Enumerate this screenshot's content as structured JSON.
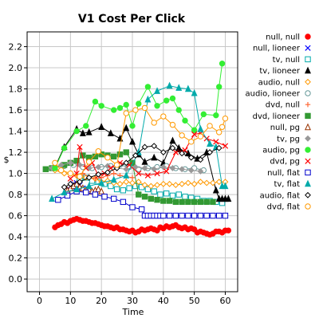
{
  "chart_data": {
    "type": "line",
    "title": "V1 Cost Per Click",
    "xlabel": "Time",
    "ylabel": "$",
    "xlim": [
      -4,
      64
    ],
    "ylim": [
      -0.12,
      2.34
    ],
    "xticks": [
      "0",
      "10",
      "20",
      "30",
      "40",
      "50",
      "60"
    ],
    "yticks": [
      "0.0",
      "0.2",
      "0.4",
      "0.6",
      "0.8",
      "1.0",
      "1.2",
      "1.4",
      "1.6",
      "1.8",
      "2.0",
      "2.2"
    ],
    "grid": true,
    "legend_position": "right",
    "series": [
      {
        "name": "null, null",
        "color": "#ff0000",
        "marker": "circle-filled",
        "x": [
          5,
          6,
          7,
          8,
          9,
          10,
          11,
          12,
          13,
          14,
          15,
          16,
          17,
          18,
          19,
          20,
          21,
          22,
          23,
          24,
          25,
          26,
          27,
          28,
          29,
          30,
          31,
          32,
          33,
          34,
          35,
          36,
          37,
          38,
          39,
          40,
          41,
          42,
          43,
          44,
          45,
          46,
          47,
          48,
          49,
          50,
          51,
          52,
          53,
          54,
          55,
          56,
          57,
          58,
          59,
          60,
          61
        ],
        "y": [
          0.49,
          0.51,
          0.52,
          0.54,
          0.53,
          0.55,
          0.56,
          0.57,
          0.56,
          0.55,
          0.55,
          0.54,
          0.53,
          0.53,
          0.52,
          0.51,
          0.5,
          0.5,
          0.49,
          0.48,
          0.49,
          0.47,
          0.47,
          0.46,
          0.45,
          0.46,
          0.44,
          0.45,
          0.47,
          0.46,
          0.47,
          0.48,
          0.47,
          0.46,
          0.49,
          0.48,
          0.5,
          0.49,
          0.5,
          0.51,
          0.49,
          0.48,
          0.49,
          0.47,
          0.48,
          0.47,
          0.44,
          0.45,
          0.44,
          0.43,
          0.42,
          0.43,
          0.45,
          0.45,
          0.44,
          0.46,
          0.46
        ]
      },
      {
        "name": "null, lioneer",
        "color": "#0000ff",
        "marker": "x",
        "x": [
          9,
          10,
          11,
          12,
          13,
          14,
          15
        ],
        "y": [
          0.85,
          0.88,
          0.9,
          0.91,
          0.89,
          0.86,
          0.83
        ]
      },
      {
        "name": "tv, null",
        "color": "#00aaaa",
        "marker": "square-open",
        "x": [
          13,
          15,
          17,
          19,
          21,
          23,
          25,
          27,
          29,
          31,
          33,
          35,
          37,
          39,
          41,
          43,
          45,
          47,
          49,
          51,
          53,
          55,
          57,
          59
        ],
        "y": [
          0.95,
          0.96,
          0.93,
          0.92,
          0.9,
          0.88,
          0.85,
          0.84,
          0.86,
          0.88,
          0.87,
          0.85,
          0.83,
          0.8,
          0.81,
          0.79,
          0.8,
          0.78,
          0.77,
          0.76,
          0.74,
          0.74,
          0.73,
          0.72
        ]
      },
      {
        "name": "tv, lioneer",
        "color": "#000000",
        "marker": "triangle-filled",
        "x": [
          5,
          8,
          12,
          14,
          16,
          20,
          23,
          26,
          28,
          30,
          32,
          34,
          37,
          40,
          43,
          45,
          48,
          51,
          54,
          57,
          58,
          59,
          60,
          61
        ],
        "y": [
          1.06,
          1.25,
          1.42,
          1.38,
          1.39,
          1.44,
          1.38,
          1.33,
          1.43,
          1.3,
          1.18,
          1.11,
          1.15,
          1.1,
          1.31,
          1.24,
          1.19,
          1.14,
          1.2,
          0.84,
          0.76,
          0.76,
          0.76,
          0.76
        ]
      },
      {
        "name": "audio, null",
        "color": "#ff9900",
        "marker": "diamond-open",
        "x": [
          5,
          8,
          12,
          15,
          18,
          20,
          22,
          24,
          26,
          28,
          30,
          32,
          34,
          36,
          38,
          40,
          42,
          44,
          46,
          48,
          50,
          52,
          54,
          56,
          58,
          60
        ],
        "y": [
          1.03,
          1.0,
          0.98,
          0.96,
          0.95,
          0.92,
          0.93,
          0.91,
          0.9,
          0.92,
          0.91,
          0.92,
          0.89,
          0.88,
          0.89,
          0.9,
          0.9,
          0.89,
          0.9,
          0.91,
          0.9,
          0.92,
          0.91,
          0.91,
          0.92,
          0.92
        ]
      },
      {
        "name": "audio, lioneer",
        "color": "#669999",
        "marker": "circle-open",
        "x": [
          5,
          8,
          11,
          14,
          17,
          20,
          23,
          26,
          29,
          32,
          35,
          38,
          41,
          44,
          47,
          50,
          53
        ],
        "y": [
          1.06,
          1.07,
          1.08,
          1.06,
          1.05,
          1.06,
          1.07,
          1.08,
          1.06,
          1.04,
          1.05,
          1.06,
          1.07,
          1.05,
          1.04,
          1.05,
          1.03
        ]
      },
      {
        "name": "dvd, null",
        "color": "#ff6633",
        "marker": "plus",
        "x": [
          12,
          14,
          16,
          18,
          20,
          22,
          24,
          26,
          28,
          30
        ],
        "y": [
          0.98,
          1.0,
          0.97,
          0.95,
          0.96,
          0.98,
          1.0,
          0.98,
          0.97,
          0.96
        ]
      },
      {
        "name": "dvd, lioneer",
        "color": "#339933",
        "marker": "square-filled",
        "x": [
          2,
          4,
          8,
          10,
          12,
          14,
          16,
          18,
          20,
          22,
          24,
          26,
          28,
          30,
          32,
          34,
          36,
          38,
          40,
          42,
          44,
          46,
          48,
          50,
          52,
          54,
          56
        ],
        "y": [
          1.04,
          1.05,
          1.08,
          1.1,
          1.12,
          1.17,
          1.15,
          1.16,
          1.18,
          1.17,
          1.16,
          1.18,
          1.2,
          1.1,
          0.8,
          0.78,
          0.76,
          0.75,
          0.74,
          0.74,
          0.73,
          0.73,
          0.73,
          0.73,
          0.73,
          0.73,
          0.73
        ]
      },
      {
        "name": "null, pg",
        "color": "#993300",
        "marker": "triangle-open",
        "x": [
          9,
          10,
          11,
          12,
          13,
          14,
          15,
          16,
          17,
          18,
          19,
          20
        ],
        "y": [
          0.84,
          0.86,
          0.88,
          0.9,
          0.87,
          0.86,
          0.84,
          0.85,
          0.83,
          0.84,
          0.85,
          0.83
        ]
      },
      {
        "name": "tv, pg",
        "color": "#999999",
        "marker": "diamond-filled",
        "x": [
          4,
          7,
          10,
          13,
          16,
          19,
          22,
          25,
          28,
          31,
          34,
          37,
          40,
          43,
          46,
          49,
          52
        ],
        "y": [
          1.05,
          1.08,
          1.1,
          1.08,
          1.05,
          1.06,
          1.07,
          1.05,
          1.04,
          1.06,
          1.05,
          1.04,
          1.06,
          1.05,
          1.04,
          1.03,
          1.02
        ]
      },
      {
        "name": "audio, pg",
        "color": "#33ee33",
        "marker": "circle-filled",
        "x": [
          5,
          8,
          12,
          15,
          18,
          20,
          24,
          26,
          28,
          30,
          32,
          35,
          38,
          41,
          43,
          45,
          47,
          50,
          53,
          57,
          58,
          59
        ],
        "y": [
          1.05,
          1.24,
          1.4,
          1.45,
          1.68,
          1.64,
          1.6,
          1.62,
          1.65,
          1.45,
          1.66,
          1.82,
          1.64,
          1.69,
          1.71,
          1.6,
          1.5,
          1.41,
          1.56,
          1.55,
          1.82,
          2.04
        ]
      },
      {
        "name": "dvd, pg",
        "color": "#ff0000",
        "marker": "x",
        "x": [
          10,
          12,
          13,
          15,
          17,
          19,
          21,
          23,
          26,
          29,
          32,
          35,
          38,
          41,
          44,
          47,
          50,
          52,
          54,
          57,
          60
        ],
        "y": [
          0.95,
          1.0,
          1.25,
          1.05,
          1.1,
          0.98,
          1.0,
          1.05,
          1.1,
          1.08,
          1.0,
          0.98,
          1.0,
          1.02,
          1.2,
          1.22,
          1.37,
          1.38,
          1.33,
          1.3,
          1.26
        ]
      },
      {
        "name": "null, flat",
        "color": "#0000cc",
        "marker": "square-open",
        "x": [
          6,
          9,
          12,
          15,
          18,
          21,
          24,
          27,
          30,
          33,
          34,
          35,
          36,
          37,
          38,
          39,
          40,
          42,
          44,
          46,
          48,
          50,
          52,
          54,
          56,
          58,
          60
        ],
        "y": [
          0.75,
          0.79,
          0.83,
          0.82,
          0.8,
          0.78,
          0.76,
          0.73,
          0.68,
          0.66,
          0.6,
          0.6,
          0.6,
          0.6,
          0.6,
          0.6,
          0.6,
          0.6,
          0.6,
          0.6,
          0.6,
          0.6,
          0.6,
          0.6,
          0.6,
          0.6,
          0.6
        ]
      },
      {
        "name": "tv, flat",
        "color": "#00aaaa",
        "marker": "triangle-filled",
        "x": [
          4,
          8,
          12,
          16,
          20,
          24,
          28,
          32,
          35,
          38,
          42,
          45,
          48,
          50,
          52,
          55,
          57,
          59,
          60
        ],
        "y": [
          0.76,
          0.82,
          0.85,
          0.88,
          0.91,
          0.94,
          0.98,
          1.2,
          1.7,
          1.78,
          1.83,
          1.81,
          1.8,
          1.76,
          1.42,
          1.28,
          1.25,
          0.88,
          0.88
        ]
      },
      {
        "name": "audio, flat",
        "color": "#000000",
        "marker": "diamond-open",
        "x": [
          8,
          10,
          13,
          16,
          19,
          22,
          25,
          28,
          31,
          34,
          37,
          40,
          43,
          46,
          49,
          52,
          55,
          58
        ],
        "y": [
          0.87,
          0.9,
          0.92,
          0.96,
          0.99,
          1.01,
          1.05,
          1.1,
          1.17,
          1.25,
          1.26,
          1.2,
          1.24,
          1.19,
          1.15,
          1.13,
          1.2,
          1.24
        ]
      },
      {
        "name": "dvd, flat",
        "color": "#ff9900",
        "marker": "circle-open",
        "x": [
          5,
          7,
          10,
          13,
          16,
          19,
          22,
          25,
          28,
          31,
          34,
          37,
          40,
          43,
          46,
          49,
          52,
          55,
          58,
          59,
          60
        ],
        "y": [
          1.1,
          1.03,
          1.0,
          0.97,
          1.11,
          1.21,
          1.15,
          1.08,
          1.57,
          1.6,
          1.62,
          1.48,
          1.54,
          1.46,
          1.36,
          1.3,
          1.35,
          1.45,
          1.39,
          1.44,
          1.52
        ]
      }
    ]
  }
}
